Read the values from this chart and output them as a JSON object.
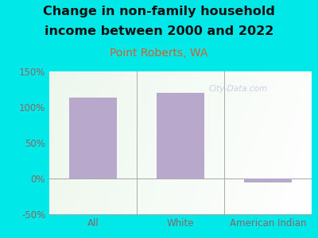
{
  "title_line1": "Change in non-family household",
  "title_line2": "income between 2000 and 2022",
  "subtitle": "Point Roberts, WA",
  "categories": [
    "All",
    "White",
    "American Indian"
  ],
  "values": [
    113,
    120,
    -5
  ],
  "bar_color": "#b8a8cc",
  "title_fontsize": 11.5,
  "subtitle_fontsize": 10,
  "subtitle_color": "#d46030",
  "title_color": "#111111",
  "tick_label_color": "#886666",
  "category_label_color": "#886666",
  "ylim": [
    -50,
    150
  ],
  "yticks": [
    -50,
    0,
    50,
    100,
    150
  ],
  "background_outer": "#00e8e8",
  "watermark": "City-Data.com",
  "grad_left": "#c8e8c0",
  "grad_right": "#f0f8f0"
}
